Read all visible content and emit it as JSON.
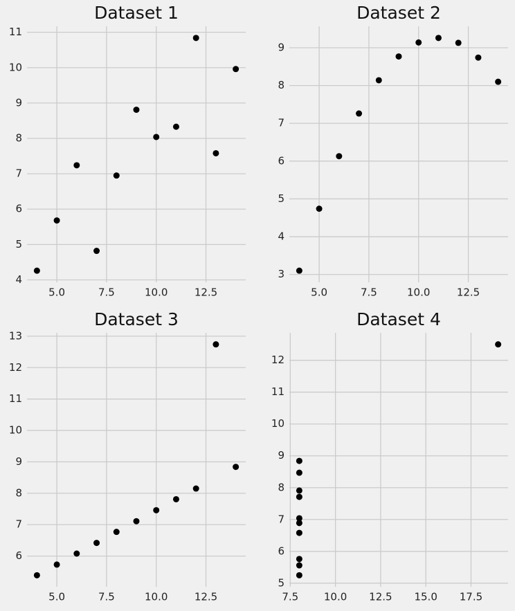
{
  "chart_data": [
    {
      "type": "scatter",
      "title": "Dataset 1",
      "color": "#000000",
      "grid": true,
      "x": [
        10,
        8,
        13,
        9,
        11,
        14,
        6,
        4,
        12,
        7,
        5
      ],
      "values": [
        8.04,
        6.95,
        7.58,
        8.81,
        8.33,
        9.96,
        7.24,
        4.26,
        10.84,
        4.82,
        5.68
      ],
      "xlim": [
        3.5,
        14.5
      ],
      "ylim": [
        3.931,
        11.169
      ],
      "xticks": [
        {
          "value": 5,
          "label": "5.0"
        },
        7.5,
        {
          "value": 10,
          "label": "10.0"
        },
        12.5
      ],
      "yticks": [
        4,
        5,
        6,
        7,
        8,
        9,
        10,
        11
      ]
    },
    {
      "type": "scatter",
      "title": "Dataset 2",
      "color": "#000000",
      "grid": true,
      "x": [
        10,
        8,
        13,
        9,
        11,
        14,
        6,
        4,
        12,
        7,
        5
      ],
      "values": [
        9.14,
        8.14,
        8.74,
        8.77,
        9.26,
        8.1,
        6.13,
        3.1,
        9.13,
        7.26,
        4.74
      ],
      "xlim": [
        3.5,
        14.5
      ],
      "ylim": [
        2.792,
        9.568
      ],
      "xticks": [
        {
          "value": 5,
          "label": "5.0"
        },
        7.5,
        {
          "value": 10,
          "label": "10.0"
        },
        12.5
      ],
      "yticks": [
        3,
        4,
        5,
        6,
        7,
        8,
        9
      ]
    },
    {
      "type": "scatter",
      "title": "Dataset 3",
      "color": "#000000",
      "grid": true,
      "x": [
        10,
        8,
        13,
        9,
        11,
        14,
        6,
        4,
        12,
        7,
        5
      ],
      "values": [
        7.46,
        6.77,
        12.74,
        7.11,
        7.81,
        8.84,
        6.08,
        5.39,
        8.15,
        6.42,
        5.73
      ],
      "xlim": [
        3.5,
        14.5
      ],
      "ylim": [
        5.0225,
        13.1075
      ],
      "xticks": [
        {
          "value": 5,
          "label": "5.0"
        },
        7.5,
        {
          "value": 10,
          "label": "10.0"
        },
        12.5
      ],
      "yticks": [
        6,
        7,
        8,
        9,
        10,
        11,
        12,
        13
      ]
    },
    {
      "type": "scatter",
      "title": "Dataset 4",
      "color": "#000000",
      "grid": true,
      "x": [
        8,
        8,
        8,
        8,
        8,
        8,
        8,
        19,
        8,
        8,
        8
      ],
      "values": [
        6.58,
        5.76,
        7.71,
        8.84,
        8.47,
        7.04,
        5.25,
        12.5,
        5.56,
        7.91,
        6.89
      ],
      "xlim": [
        7.45,
        19.55
      ],
      "ylim": [
        4.8875,
        12.8625
      ],
      "xticks": [
        7.5,
        {
          "value": 10,
          "label": "10.0"
        },
        12.5,
        {
          "value": 15,
          "label": "15.0"
        },
        17.5
      ],
      "yticks": [
        5,
        6,
        7,
        8,
        9,
        10,
        11,
        12
      ]
    }
  ]
}
